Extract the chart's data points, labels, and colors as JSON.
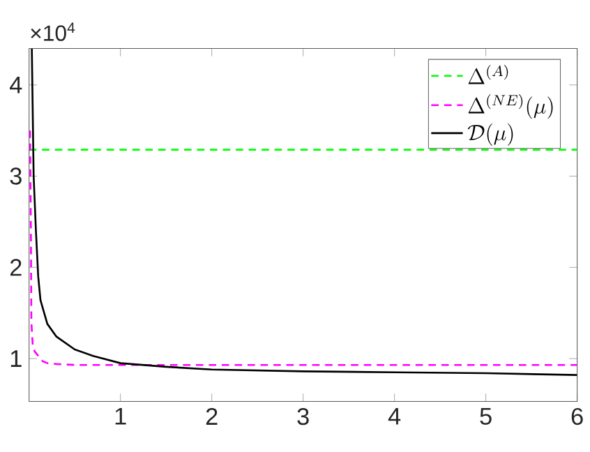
{
  "chart_data": {
    "type": "line",
    "xlim": [
      0,
      6
    ],
    "xticks": [
      1,
      2,
      3,
      4,
      5,
      6
    ],
    "ylim": [
      0.53,
      4.4
    ],
    "yticks": [
      1,
      2,
      3,
      4
    ],
    "annotations": [
      "×10$^{4}$"
    ],
    "legend": "top right",
    "grid": false,
    "marker": "none",
    "series": [
      {
        "name": "\\Delta^{(A)}",
        "color": "#00ff00",
        "line_style": "dashed",
        "x": [
          0,
          6
        ],
        "values": [
          3.29,
          3.29
        ]
      },
      {
        "name": "\\Delta^{(NE)}(\\mu)",
        "color": "#ff00ff",
        "line_style": "dashed",
        "x": [
          0.01,
          0.02,
          0.025,
          0.04,
          0.06,
          0.1,
          0.15,
          0.2,
          0.3,
          0.5,
          1,
          2,
          3,
          4,
          5,
          6
        ],
        "values": [
          3.5,
          2.4,
          1.4,
          1.15,
          1.08,
          1.03,
          0.97,
          0.95,
          0.94,
          0.93,
          0.93,
          0.93,
          0.93,
          0.93,
          0.93,
          0.93
        ]
      },
      {
        "name": "\\mathcal{D}(\\mu)",
        "color": "#000000",
        "line_style": "solid",
        "x": [
          0.03,
          0.05,
          0.075,
          0.1,
          0.125,
          0.2,
          0.3,
          0.5,
          0.7,
          1,
          1.5,
          2,
          3,
          4,
          5,
          6
        ],
        "values": [
          4.4,
          3.0,
          2.4,
          1.9,
          1.64,
          1.38,
          1.24,
          1.1,
          1.03,
          0.95,
          0.91,
          0.88,
          0.86,
          0.85,
          0.84,
          0.82
        ]
      }
    ]
  }
}
